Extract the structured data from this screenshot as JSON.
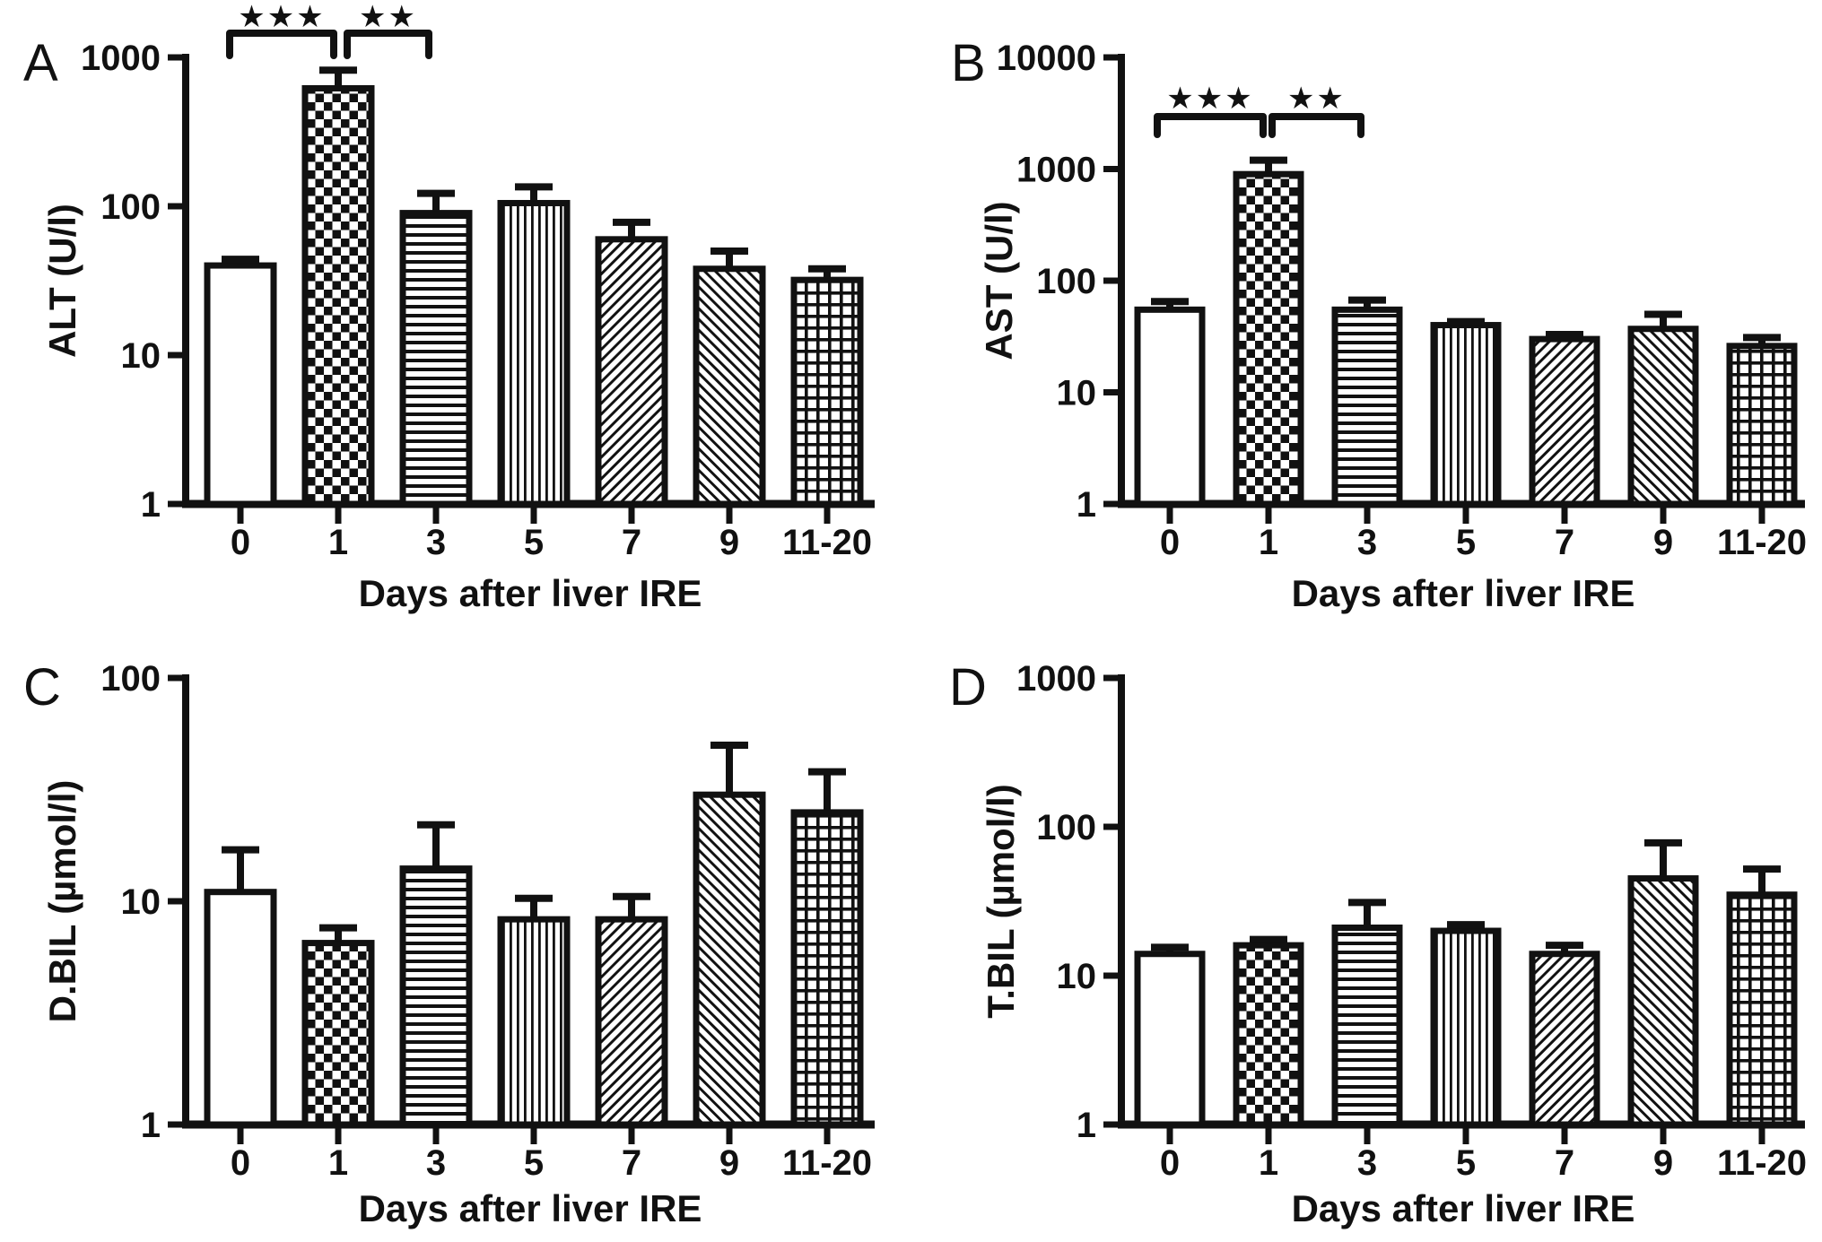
{
  "figure": {
    "background_color": "#ffffff",
    "ink_color": "#111111",
    "bar_fill_color": "#ffffff",
    "description": "Four-panel bar figure of liver function blood values after liver IRE",
    "panel_letters": [
      "A",
      "B",
      "C",
      "D"
    ]
  },
  "chart_data": [
    {
      "panel": "A",
      "type": "bar",
      "yscale": "log",
      "title": "",
      "xlabel": "Days after liver IRE",
      "ylabel": "ALT (U/l)",
      "ylim": [
        1,
        1000
      ],
      "yticks": [
        "1",
        "10",
        "100",
        "1000"
      ],
      "categories": [
        "0",
        "1",
        "3",
        "5",
        "7",
        "9",
        "11-20"
      ],
      "values": [
        40,
        620,
        90,
        105,
        60,
        38,
        32
      ],
      "errors_upper_top": [
        44,
        820,
        122,
        135,
        78,
        50,
        38
      ],
      "bar_patterns": [
        "solid-white",
        "checkerboard",
        "horizontal-stripes",
        "vertical-stripes",
        "diagonal-up-stripes",
        "diagonal-down-stripes",
        "cross-hatch-grid"
      ],
      "significance": [
        {
          "from_index": 0,
          "to_index": 1,
          "label": "***"
        },
        {
          "from_index": 1,
          "to_index": 2,
          "label": "**"
        }
      ],
      "grid": "off",
      "legend": "none"
    },
    {
      "panel": "B",
      "type": "bar",
      "yscale": "log",
      "title": "",
      "xlabel": "Days after liver IRE",
      "ylabel": "AST (U/l)",
      "ylim": [
        1,
        10000
      ],
      "yticks": [
        "1",
        "10",
        "100",
        "1000",
        "10000"
      ],
      "categories": [
        "0",
        "1",
        "3",
        "5",
        "7",
        "9",
        "11-20"
      ],
      "values": [
        55,
        900,
        55,
        40,
        30,
        37,
        26
      ],
      "errors_upper_top": [
        65,
        1200,
        67,
        43,
        33,
        50,
        31
      ],
      "bar_patterns": [
        "solid-white",
        "checkerboard",
        "horizontal-stripes",
        "vertical-stripes",
        "diagonal-up-stripes",
        "diagonal-down-stripes",
        "cross-hatch-grid"
      ],
      "significance": [
        {
          "from_index": 0,
          "to_index": 1,
          "label": "***"
        },
        {
          "from_index": 1,
          "to_index": 2,
          "label": "**"
        }
      ],
      "grid": "off",
      "legend": "none"
    },
    {
      "panel": "C",
      "type": "bar",
      "yscale": "log",
      "title": "",
      "xlabel": "Days after liver IRE",
      "ylabel": "D.BIL (µmol/l)",
      "ylim": [
        1,
        100
      ],
      "yticks": [
        "1",
        "10",
        "100"
      ],
      "categories": [
        "0",
        "1",
        "3",
        "5",
        "7",
        "9",
        "11-20"
      ],
      "values": [
        11,
        6.5,
        14,
        8.3,
        8.3,
        30,
        25
      ],
      "errors_upper_top": [
        17,
        7.6,
        22,
        10.3,
        10.5,
        50,
        38
      ],
      "bar_patterns": [
        "solid-white",
        "checkerboard",
        "horizontal-stripes",
        "vertical-stripes",
        "diagonal-up-stripes",
        "diagonal-down-stripes",
        "cross-hatch-grid"
      ],
      "significance": [],
      "grid": "off",
      "legend": "none"
    },
    {
      "panel": "D",
      "type": "bar",
      "yscale": "log",
      "title": "",
      "xlabel": "Days after liver IRE",
      "ylabel": "T.BIL (µmol/l)",
      "ylim": [
        1,
        1000
      ],
      "yticks": [
        "1",
        "10",
        "100",
        "1000"
      ],
      "categories": [
        "0",
        "1",
        "3",
        "5",
        "7",
        "9",
        "11-20"
      ],
      "values": [
        14,
        16,
        21,
        20,
        14,
        45,
        35
      ],
      "errors_upper_top": [
        15.5,
        17.5,
        31,
        22,
        16,
        78,
        52
      ],
      "bar_patterns": [
        "solid-white",
        "checkerboard",
        "horizontal-stripes",
        "vertical-stripes",
        "diagonal-up-stripes",
        "diagonal-down-stripes",
        "cross-hatch-grid"
      ],
      "significance": [],
      "grid": "off",
      "legend": "none"
    }
  ]
}
